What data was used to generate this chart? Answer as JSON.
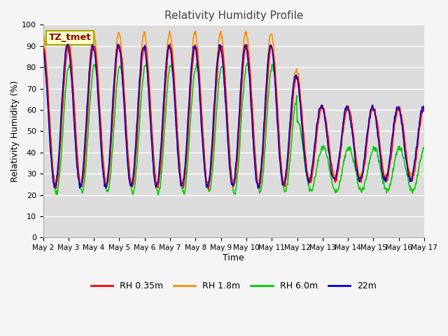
{
  "title": "Relativity Humidity Profile",
  "xlabel": "Time",
  "ylabel": "Relativity Humidity (%)",
  "ylim": [
    0,
    100
  ],
  "bg_color": "#dcdcdc",
  "fig_color": "#f5f5f5",
  "annotation_text": "TZ_tmet",
  "annotation_bg": "#ffffcc",
  "annotation_border": "#aaaa00",
  "annotation_text_color": "#8b0000",
  "colors": {
    "RH 0.35m": "#ff0000",
    "RH 1.8m": "#ff8c00",
    "RH 6.0m": "#00cc00",
    "22m": "#0000cc"
  },
  "xtick_labels": [
    "May 2",
    "May 3",
    "May 4",
    "May 5",
    "May 6",
    "May 7",
    "May 8",
    "May 9",
    "May 10",
    "May 11",
    "May 12",
    "May 13",
    "May 14",
    "May 15",
    "May 16",
    "May 17"
  ],
  "grid_color": "#ffffff",
  "linewidth": 1.2
}
